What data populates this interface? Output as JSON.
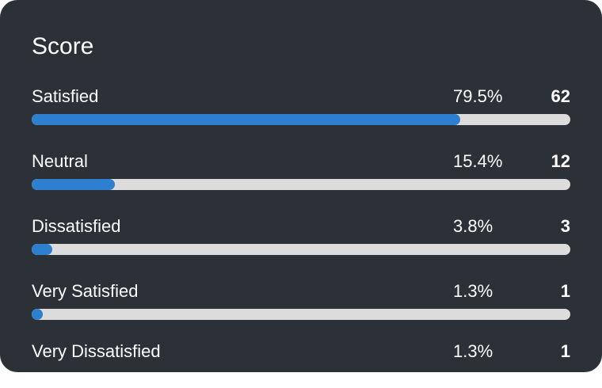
{
  "panel": {
    "title": "Score",
    "accent_color": "#2f7fd0",
    "track_color": "#dcdcdc",
    "background_color": "#2b3136"
  },
  "rows": [
    {
      "label": "Satisfied",
      "percent": "79.5%",
      "count": "62",
      "fraction": 0.795
    },
    {
      "label": "Neutral",
      "percent": "15.4%",
      "count": "12",
      "fraction": 0.154
    },
    {
      "label": "Dissatisfied",
      "percent": "3.8%",
      "count": "3",
      "fraction": 0.038
    },
    {
      "label": "Very Satisfied",
      "percent": "1.3%",
      "count": "1",
      "fraction": 0.013
    },
    {
      "label": "Very Dissatisfied",
      "percent": "1.3%",
      "count": "1",
      "fraction": 0.013
    }
  ]
}
